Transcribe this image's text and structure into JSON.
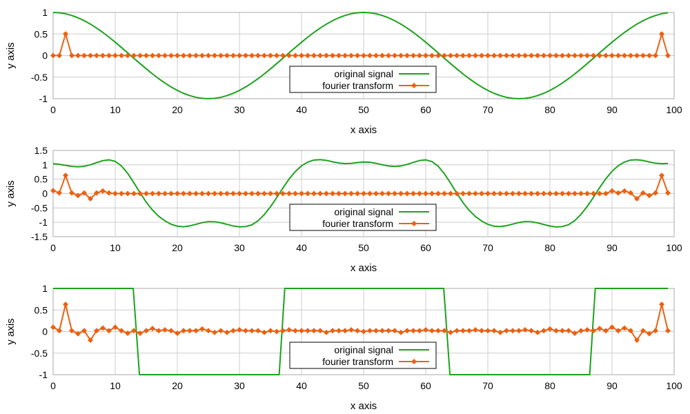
{
  "chart_data": [
    {
      "type": "line",
      "xlabel": "x axis",
      "ylabel": "y axis",
      "xlim": [
        0,
        100
      ],
      "ylim": [
        -1,
        1
      ],
      "xticks": [
        0,
        10,
        20,
        30,
        40,
        50,
        60,
        70,
        80,
        90,
        100
      ],
      "yticks": [
        -1,
        -0.5,
        0,
        0.5,
        1
      ],
      "grid": true,
      "legend": {
        "placement": "bottom-center",
        "entries": [
          "original signal",
          "fourier transform"
        ]
      },
      "series": [
        {
          "name": "original signal",
          "color": "#1aa31a",
          "marker": "none",
          "x_range": [
            0,
            99
          ],
          "values": [
            1,
            0.992,
            0.969,
            0.929,
            0.876,
            0.809,
            0.729,
            0.637,
            0.536,
            0.426,
            0.309,
            0.187,
            0.063,
            -0.063,
            -0.187,
            -0.309,
            -0.426,
            -0.536,
            -0.637,
            -0.729,
            -0.809,
            -0.876,
            -0.929,
            -0.969,
            -0.992,
            -1,
            -0.992,
            -0.969,
            -0.929,
            -0.876,
            -0.809,
            -0.729,
            -0.637,
            -0.536,
            -0.426,
            -0.309,
            -0.187,
            -0.063,
            0.063,
            0.187,
            0.309,
            0.426,
            0.536,
            0.637,
            0.729,
            0.809,
            0.876,
            0.929,
            0.969,
            0.992,
            1,
            0.992,
            0.969,
            0.929,
            0.876,
            0.809,
            0.729,
            0.637,
            0.536,
            0.426,
            0.309,
            0.187,
            0.063,
            -0.063,
            -0.187,
            -0.309,
            -0.426,
            -0.536,
            -0.637,
            -0.729,
            -0.809,
            -0.876,
            -0.929,
            -0.969,
            -0.992,
            -1,
            -0.992,
            -0.969,
            -0.929,
            -0.876,
            -0.809,
            -0.729,
            -0.637,
            -0.536,
            -0.426,
            -0.309,
            -0.187,
            -0.063,
            0.063,
            0.187,
            0.309,
            0.426,
            0.536,
            0.637,
            0.729,
            0.809,
            0.876,
            0.929,
            0.969,
            0.992
          ]
        },
        {
          "name": "fourier transform",
          "color": "#ee5f0f",
          "marker": "diamond",
          "x_range": [
            0,
            99
          ],
          "values": [
            0,
            0,
            0.5,
            0,
            0,
            0,
            0,
            0,
            0,
            0,
            0,
            0,
            0,
            0,
            0,
            0,
            0,
            0,
            0,
            0,
            0,
            0,
            0,
            0,
            0,
            0,
            0,
            0,
            0,
            0,
            0,
            0,
            0,
            0,
            0,
            0,
            0,
            0,
            0,
            0,
            0,
            0,
            0,
            0,
            0,
            0,
            0,
            0,
            0,
            0,
            0,
            0,
            0,
            0,
            0,
            0,
            0,
            0,
            0,
            0,
            0,
            0,
            0,
            0,
            0,
            0,
            0,
            0,
            0,
            0,
            0,
            0,
            0,
            0,
            0,
            0,
            0,
            0,
            0,
            0,
            0,
            0,
            0,
            0,
            0,
            0,
            0,
            0,
            0,
            0,
            0,
            0,
            0,
            0,
            0,
            0,
            0,
            0,
            0.5,
            0
          ]
        }
      ]
    },
    {
      "type": "line",
      "xlabel": "x axis",
      "ylabel": "y axis",
      "xlim": [
        0,
        100
      ],
      "ylim": [
        -1.5,
        1.5
      ],
      "xticks": [
        0,
        10,
        20,
        30,
        40,
        50,
        60,
        70,
        80,
        90,
        100
      ],
      "yticks": [
        -1.5,
        -1,
        -0.5,
        0,
        0.5,
        1,
        1.5
      ],
      "grid": true,
      "legend": {
        "placement": "bottom-center",
        "entries": [
          "original signal",
          "fourier transform"
        ]
      },
      "series": [
        {
          "name": "original signal",
          "color": "#1aa31a",
          "marker": "none",
          "x_range": [
            0,
            99
          ],
          "values": [
            1.038,
            1.017,
            0.98,
            0.944,
            0.93,
            0.949,
            1.0,
            1.074,
            1.144,
            1.172,
            1.119,
            0.961,
            0.703,
            0.376,
            0.026,
            -0.302,
            -0.576,
            -0.79,
            -0.95,
            -1.068,
            -1.137,
            -1.154,
            -1.124,
            -1.069,
            -1.012,
            -0.978,
            -0.98,
            -1.017,
            -1.073,
            -1.127,
            -1.158,
            -1.148,
            -1.089,
            -0.947,
            -0.732,
            -0.459,
            -0.143,
            0.195,
            0.506,
            0.768,
            0.964,
            1.094,
            1.165,
            1.18,
            1.153,
            1.105,
            1.062,
            1.042,
            1.05,
            1.078,
            1.099,
            1.089,
            1.051,
            1.002,
            0.961,
            0.943,
            0.961,
            1.013,
            1.084,
            1.148,
            1.171,
            1.112,
            0.952,
            0.69,
            0.362,
            0.013,
            -0.314,
            -0.586,
            -0.797,
            -0.956,
            -1.07,
            -1.136,
            -1.15,
            -1.119,
            -1.063,
            -1.007,
            -0.976,
            -0.981,
            -1.019,
            -1.077,
            -1.131,
            -1.161,
            -1.148,
            -1.085,
            -0.941,
            -0.724,
            -0.45,
            -0.134,
            0.204,
            0.514,
            0.775,
            0.969,
            1.096,
            1.165,
            1.177,
            1.149,
            1.099,
            1.057,
            1.039,
            1.048
          ]
        },
        {
          "name": "fourier transform",
          "color": "#ee5f0f",
          "marker": "diamond",
          "x_range": [
            0,
            99
          ],
          "values": [
            0.1,
            0.02,
            0.63,
            0.02,
            -0.07,
            0.02,
            -0.18,
            0.02,
            0.09,
            0.02,
            0.0,
            0.0,
            0.0,
            0.0,
            0.0,
            0.0,
            0.0,
            0.0,
            0.0,
            0.0,
            0.0,
            0.0,
            0.0,
            0.0,
            0.0,
            0.0,
            0.0,
            0.0,
            0.0,
            0.0,
            0.0,
            0.0,
            0.0,
            0.0,
            0.0,
            0.0,
            0.0,
            0.0,
            0.0,
            0.0,
            0.0,
            0.0,
            0.0,
            0.0,
            0.0,
            0.0,
            0.0,
            0.0,
            0.0,
            0.0,
            0.0,
            0.0,
            0.0,
            0.0,
            0.0,
            0.0,
            0.0,
            0.0,
            0.0,
            0.0,
            0.0,
            0.0,
            0.0,
            0.0,
            0.0,
            0.0,
            0.0,
            0.0,
            0.0,
            0.0,
            0.0,
            0.0,
            0.0,
            0.0,
            0.0,
            0.0,
            0.0,
            0.0,
            0.0,
            0.0,
            0.0,
            0.0,
            0.0,
            0.0,
            0.0,
            0.0,
            0.0,
            0.0,
            0.0,
            0.0,
            0.09,
            0.02,
            0.09,
            0.02,
            -0.18,
            0.02,
            -0.07,
            0.02,
            0.63,
            0.02
          ]
        }
      ]
    },
    {
      "type": "line",
      "xlabel": "x axis",
      "ylabel": "y axis",
      "xlim": [
        0,
        100
      ],
      "ylim": [
        -1,
        1
      ],
      "xticks": [
        0,
        10,
        20,
        30,
        40,
        50,
        60,
        70,
        80,
        90,
        100
      ],
      "yticks": [
        -1,
        -0.5,
        0,
        0.5,
        1
      ],
      "grid": true,
      "legend": {
        "placement": "bottom-center",
        "entries": [
          "original signal",
          "fourier transform"
        ]
      },
      "series": [
        {
          "name": "original signal",
          "color": "#1aa31a",
          "marker": "none",
          "x": [
            0,
            12.9,
            13.9,
            36.4,
            37.3,
            62.9,
            63.9,
            86.4,
            87.3,
            99
          ],
          "values": [
            1,
            1,
            -1,
            -1,
            1,
            1,
            -1,
            -1,
            1,
            1
          ]
        },
        {
          "name": "fourier transform",
          "color": "#ee5f0f",
          "marker": "diamond",
          "x_range": [
            0,
            99
          ],
          "values": [
            0.1,
            0.02,
            0.63,
            0.02,
            -0.05,
            0.02,
            -0.2,
            0.02,
            0.08,
            0.02,
            0.1,
            0.02,
            -0.04,
            0.02,
            -0.04,
            0.02,
            0.07,
            0.02,
            0.04,
            0.02,
            -0.04,
            0.02,
            0.02,
            0.02,
            0.06,
            0.02,
            -0.02,
            0.02,
            -0.02,
            0.02,
            0.04,
            0.02,
            0.02,
            0.02,
            -0.02,
            0.02,
            0.0,
            0.02,
            0.04,
            0.02,
            0.02,
            0.02,
            0.02,
            0.02,
            -0.02,
            0.02,
            0.02,
            0.02,
            0.04,
            0.02,
            0.0,
            0.02,
            0.02,
            0.02,
            0.02,
            0.02,
            -0.02,
            0.02,
            0.02,
            0.02,
            0.04,
            0.02,
            0.02,
            0.02,
            -0.02,
            0.02,
            0.02,
            0.02,
            0.04,
            0.02,
            0.02,
            0.02,
            -0.02,
            0.02,
            0.02,
            0.02,
            0.04,
            0.02,
            -0.02,
            0.02,
            0.06,
            0.02,
            0.02,
            0.02,
            -0.04,
            0.02,
            0.04,
            0.02,
            0.07,
            0.02,
            0.1,
            0.02,
            0.08,
            0.02,
            -0.2,
            0.02,
            -0.05,
            0.02,
            0.63,
            0.02
          ]
        }
      ]
    }
  ]
}
